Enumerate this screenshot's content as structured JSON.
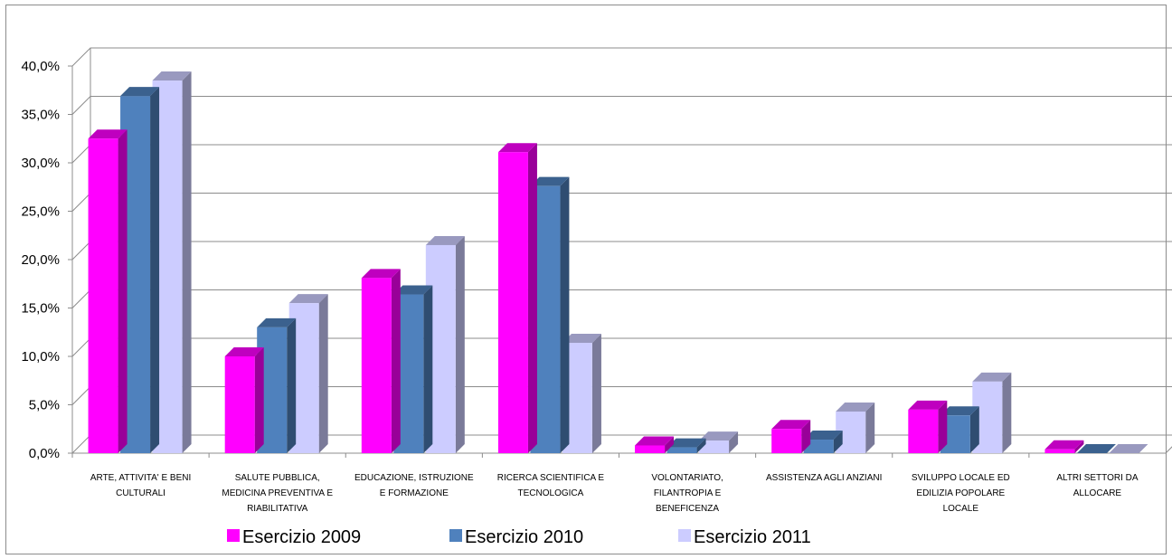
{
  "chart_data": {
    "type": "bar",
    "style": "3d-clustered-column",
    "categories": [
      [
        "ARTE, ATTIVITA' E BENI",
        "CULTURALI"
      ],
      [
        "SALUTE PUBBLICA,",
        "MEDICINA PREVENTIVA E",
        "RIABILITATIVA"
      ],
      [
        "EDUCAZIONE, ISTRUZIONE",
        "E FORMAZIONE"
      ],
      [
        "RICERCA SCIENTIFICA E",
        "TECNOLOGICA"
      ],
      [
        "VOLONTARIATO,",
        "FILANTROPIA E",
        "BENEFICENZA"
      ],
      [
        "ASSISTENZA AGLI ANZIANI"
      ],
      [
        "SVILUPPO LOCALE ED",
        "EDILIZIA POPOLARE",
        "LOCALE"
      ],
      [
        "ALTRI SETTORI DA",
        "ALLOCARE"
      ]
    ],
    "series": [
      {
        "name": "Esercizio 2009",
        "color": "#ff00ff",
        "values": [
          32.5,
          10.0,
          18.1,
          31.1,
          0.8,
          2.5,
          4.5,
          0.4
        ]
      },
      {
        "name": "Esercizio 2010",
        "color": "#4f81bd",
        "values": [
          36.9,
          13.0,
          16.4,
          27.6,
          0.6,
          1.4,
          3.9,
          0.0
        ]
      },
      {
        "name": "Esercizio 2011",
        "color": "#ccccff",
        "values": [
          38.5,
          15.5,
          21.5,
          11.4,
          1.3,
          4.3,
          7.4,
          0.0
        ]
      }
    ],
    "yticks": [
      "0,0%",
      "5,0%",
      "10,0%",
      "15,0%",
      "20,0%",
      "25,0%",
      "30,0%",
      "35,0%",
      "40,0%"
    ],
    "ylim": [
      0,
      40
    ],
    "grid": true,
    "legend_position": "bottom"
  }
}
